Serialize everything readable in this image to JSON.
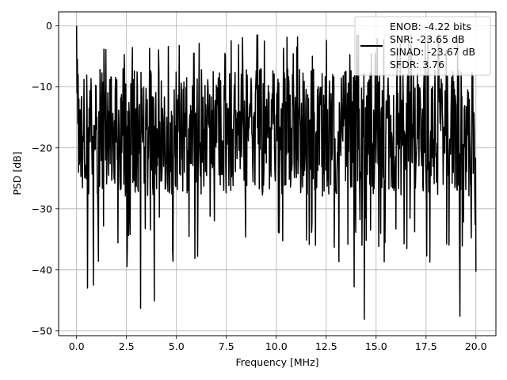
{
  "chart_data": {
    "type": "line",
    "title": "",
    "xlabel": "Frequency [MHz]",
    "ylabel": "PSD [dB]",
    "xlim": [
      -0.9,
      21.0
    ],
    "ylim": [
      -50.8,
      2.3
    ],
    "xticks": [
      0.0,
      2.5,
      5.0,
      7.5,
      10.0,
      12.5,
      15.0,
      17.5,
      20.0
    ],
    "xtick_labels": [
      "0.0",
      "2.5",
      "5.0",
      "7.5",
      "10.0",
      "12.5",
      "15.0",
      "17.5",
      "20.0"
    ],
    "yticks": [
      0,
      -10,
      -20,
      -30,
      -40,
      -50
    ],
    "ytick_labels": [
      "0",
      "−10",
      "−20",
      "−30",
      "−40",
      "−50"
    ],
    "grid": true,
    "legend": {
      "placement": "upper-right",
      "entries": [
        "ENOB: -4.22 bits",
        "SNR: -23.65 dB",
        "SINAD: -23.67 dB",
        "SFDR: 3.76"
      ]
    },
    "series": [
      {
        "color": "#000000",
        "description": "PSD noise floor 0 to 20 MHz",
        "x_range": [
          0.0,
          20.0
        ],
        "num_points": 1024,
        "peak": {
          "x": 0.0,
          "y": 0.0
        },
        "typical_upper_envelope": -7,
        "typical_median": -17,
        "typical_lower_envelope": -28,
        "notable_minima": [
          {
            "x": 0.55,
            "y": -43.0
          },
          {
            "x": 0.85,
            "y": -42.5
          },
          {
            "x": 3.2,
            "y": -46.3
          },
          {
            "x": 3.9,
            "y": -45.1
          },
          {
            "x": 14.4,
            "y": -48.1
          },
          {
            "x": 19.2,
            "y": -47.6
          },
          {
            "x": 13.9,
            "y": -42.8
          },
          {
            "x": 20.0,
            "y": -40.3
          }
        ]
      }
    ]
  }
}
